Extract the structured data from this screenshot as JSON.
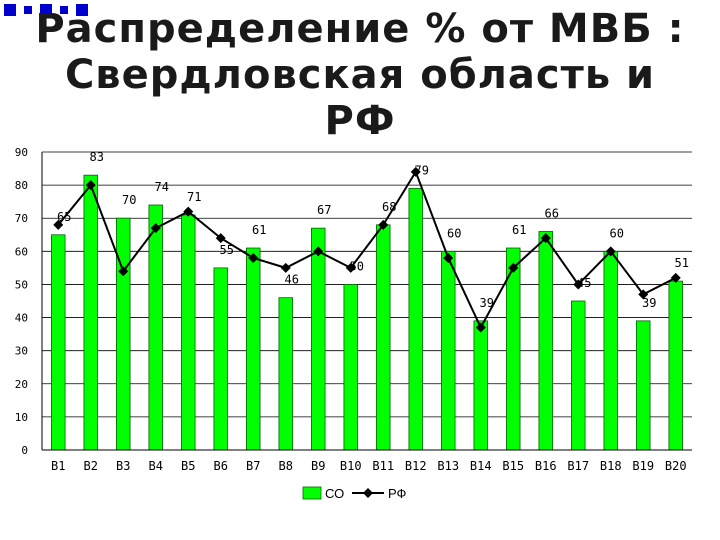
{
  "slide": {
    "title_line1": "Распределение % от МВБ :",
    "title_line2": "Свердловская область и",
    "title_line3": "РФ"
  },
  "colors": {
    "bar_fill": "#00ff00",
    "bar_stroke": "#006600",
    "line": "#000000",
    "corner_squares": "#0000cc"
  },
  "chart_data": {
    "type": "bar",
    "categories": [
      "В1",
      "В2",
      "В3",
      "В4",
      "В5",
      "В6",
      "В7",
      "В8",
      "В9",
      "В10",
      "В11",
      "В12",
      "В13",
      "В14",
      "В15",
      "В16",
      "В17",
      "В18",
      "В19",
      "В20"
    ],
    "series": [
      {
        "name": "СО",
        "type": "bar",
        "values": [
          65,
          83,
          70,
          74,
          71,
          55,
          61,
          46,
          67,
          50,
          68,
          79,
          60,
          39,
          61,
          66,
          45,
          60,
          39,
          51
        ],
        "data_labels": [
          "65",
          "83",
          "70",
          "74",
          "71",
          "55",
          "61",
          "46",
          "67",
          "50",
          "68",
          "79",
          "60",
          "39",
          "61",
          "66",
          "45",
          "60",
          "39",
          "51"
        ]
      },
      {
        "name": "РФ",
        "type": "line",
        "marker": "diamond",
        "values": [
          68,
          80,
          54,
          67,
          72,
          64,
          58,
          55,
          60,
          55,
          68,
          84,
          58,
          37,
          55,
          64,
          50,
          60,
          47,
          52
        ]
      }
    ],
    "ylim": [
      0,
      90
    ],
    "yticks": [
      "0",
      "10",
      "20",
      "30",
      "40",
      "50",
      "60",
      "70",
      "80",
      "90"
    ],
    "grid": true,
    "legend_position": "bottom",
    "xlabel": "",
    "ylabel": ""
  }
}
